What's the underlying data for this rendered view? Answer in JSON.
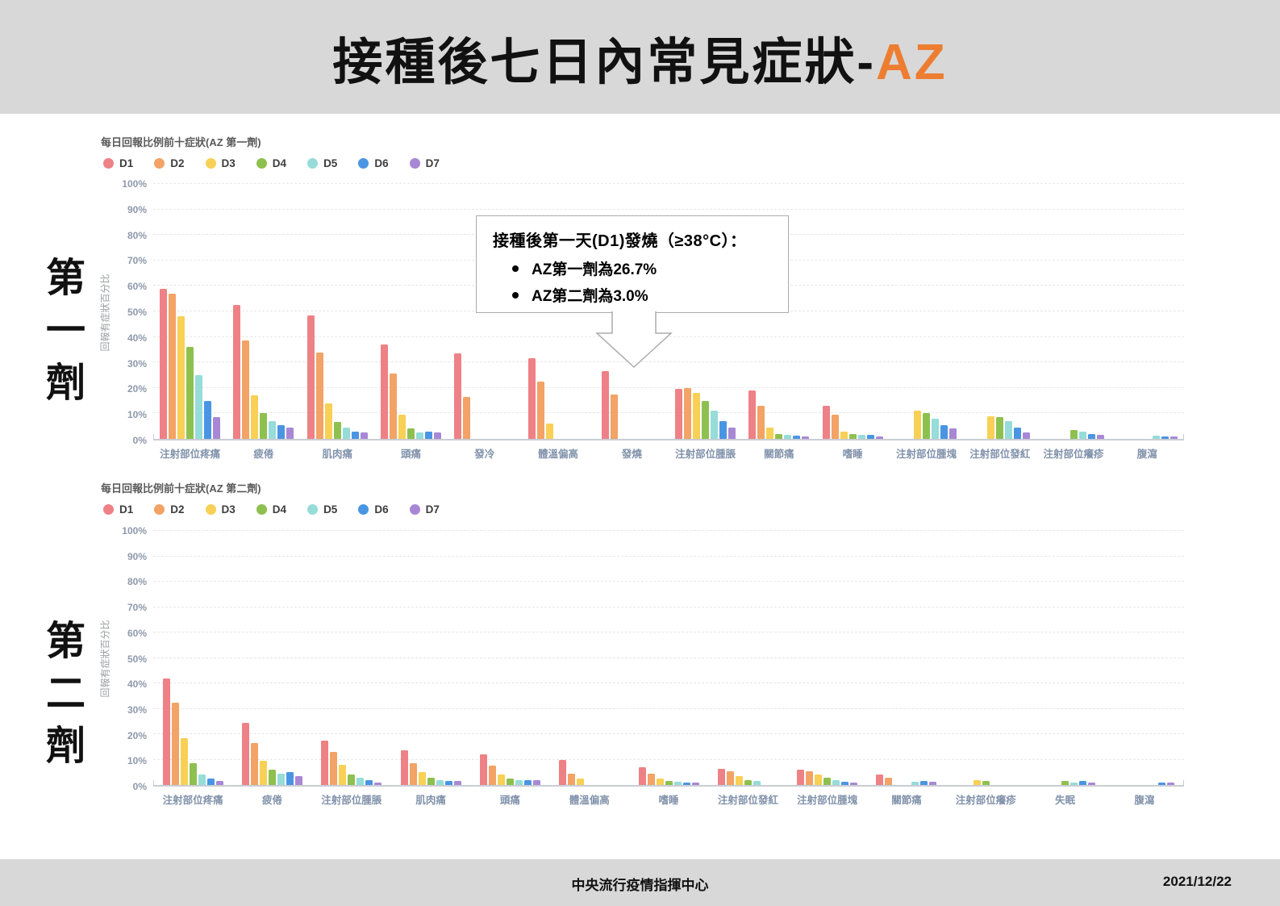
{
  "header": {
    "title_black": "接種後七日內常見症狀-",
    "title_accent": "AZ"
  },
  "side_labels": {
    "first_dose": "第一劑",
    "second_dose": "第二劑"
  },
  "annotation": {
    "title": "接種後第一天(D1)發燒（≥38°C）：",
    "bullets": [
      "AZ第一劑為26.7%",
      "AZ第二劑為3.0%"
    ],
    "arrow_icon": "down-arrow-pointer"
  },
  "footer": {
    "center": "中央流行疫情指揮中心",
    "date": "2021/12/22"
  },
  "accent_color": "#ED7D31",
  "day_colors": {
    "D1": "#EE8186",
    "D2": "#F2A365",
    "D3": "#F8D055",
    "D4": "#8EC04F",
    "D5": "#96DCD9",
    "D6": "#4A95E3",
    "D7": "#A888D4"
  },
  "chart_data": [
    {
      "type": "bar",
      "title": "每日回報比例前十症狀(AZ 第一劑)",
      "ylabel": "回報有症狀百分比",
      "ylim": [
        0,
        100
      ],
      "ytick_step": 10,
      "grid": true,
      "legend_position": "top",
      "categories": [
        "注射部位疼痛",
        "疲倦",
        "肌肉痛",
        "頭痛",
        "發冷",
        "體溫偏高",
        "發燒",
        "注射部位腫脹",
        "關節痛",
        "嗜睡",
        "注射部位腫塊",
        "注射部位發紅",
        "注射部位癢疹",
        "腹瀉"
      ],
      "series": [
        {
          "name": "D1",
          "color": "#EE8186",
          "values": [
            59,
            52.5,
            48.5,
            37,
            33.5,
            31.5,
            26.7,
            19.5,
            19,
            13,
            0,
            0,
            0,
            0
          ]
        },
        {
          "name": "D2",
          "color": "#F2A365",
          "values": [
            57,
            38.5,
            34,
            25.5,
            16.5,
            22.5,
            17.5,
            20,
            13,
            9.5,
            0,
            0,
            0,
            0
          ]
        },
        {
          "name": "D3",
          "color": "#F8D055",
          "values": [
            48,
            17,
            14,
            9.5,
            0,
            6,
            0,
            18,
            4.5,
            3,
            11,
            9,
            0,
            0
          ]
        },
        {
          "name": "D4",
          "color": "#8EC04F",
          "values": [
            36,
            10,
            6.5,
            4,
            0,
            0,
            0,
            15,
            2,
            2,
            10,
            8.5,
            3.5,
            0
          ]
        },
        {
          "name": "D5",
          "color": "#96DCD9",
          "values": [
            25,
            7,
            4.5,
            2.5,
            0,
            0,
            0,
            11,
            1.5,
            1.5,
            8,
            7,
            3,
            1.2
          ]
        },
        {
          "name": "D6",
          "color": "#4A95E3",
          "values": [
            15,
            5.5,
            3,
            3,
            0,
            0,
            0,
            7,
            1.2,
            1.5,
            5.5,
            4.5,
            2,
            1
          ]
        },
        {
          "name": "D7",
          "color": "#A888D4",
          "values": [
            8.5,
            4.5,
            2.5,
            2.5,
            0,
            0,
            0,
            4.5,
            1,
            1,
            4,
            2.5,
            1.5,
            0.8
          ]
        }
      ]
    },
    {
      "type": "bar",
      "title": "每日回報比例前十症狀(AZ 第二劑)",
      "ylabel": "回報有症狀百分比",
      "ylim": [
        0,
        100
      ],
      "ytick_step": 10,
      "grid": true,
      "legend_position": "top",
      "categories": [
        "注射部位疼痛",
        "疲倦",
        "注射部位腫脹",
        "肌肉痛",
        "頭痛",
        "體溫偏高",
        "嗜睡",
        "注射部位發紅",
        "注射部位腫塊",
        "關節痛",
        "注射部位癢疹",
        "失眠",
        "腹瀉"
      ],
      "series": [
        {
          "name": "D1",
          "color": "#EE8186",
          "values": [
            42,
            24.5,
            17.5,
            13.5,
            12,
            10,
            7,
            6.5,
            6,
            4,
            0,
            0,
            0
          ]
        },
        {
          "name": "D2",
          "color": "#F2A365",
          "values": [
            32.5,
            16.5,
            13,
            8.5,
            7.5,
            4.5,
            4.5,
            5.5,
            5.5,
            3,
            0,
            0,
            0
          ]
        },
        {
          "name": "D3",
          "color": "#F8D055",
          "values": [
            18.5,
            9.5,
            8,
            5,
            4,
            2.5,
            2.5,
            3.5,
            4,
            0,
            2,
            0,
            0
          ]
        },
        {
          "name": "D4",
          "color": "#8EC04F",
          "values": [
            8.5,
            6,
            4,
            3,
            2.5,
            0,
            1.5,
            2,
            3,
            0,
            1.5,
            1.5,
            0
          ]
        },
        {
          "name": "D5",
          "color": "#96DCD9",
          "values": [
            4,
            4.5,
            3,
            2,
            2,
            0,
            1.2,
            1.5,
            2,
            1.2,
            0,
            1,
            0
          ]
        },
        {
          "name": "D6",
          "color": "#4A95E3",
          "values": [
            2.5,
            5,
            2,
            1.5,
            2,
            0,
            1,
            0,
            1.2,
            1.5,
            0,
            1.5,
            1
          ]
        },
        {
          "name": "D7",
          "color": "#A888D4",
          "values": [
            1.5,
            3.5,
            1,
            1.5,
            2,
            0,
            1,
            0,
            1,
            1.2,
            0,
            1,
            0.8
          ]
        }
      ]
    }
  ]
}
